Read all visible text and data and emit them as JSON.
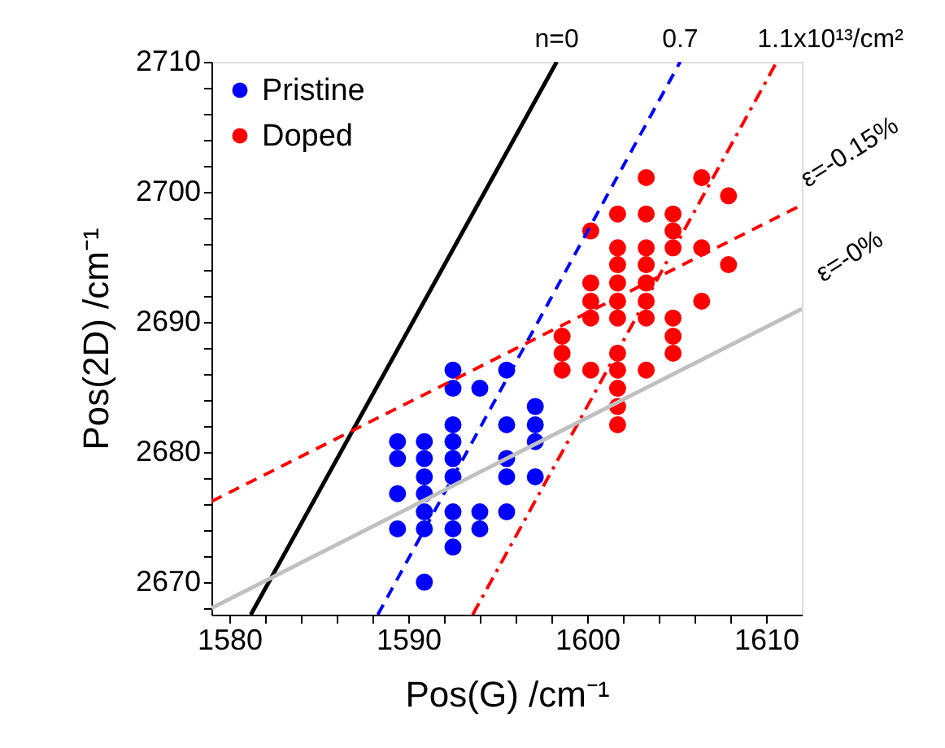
{
  "chart_data": {
    "type": "scatter",
    "xlabel": "Pos(G) /cm⁻¹",
    "ylabel": "Pos(2D) /cm⁻¹",
    "xlim": [
      1579,
      1612
    ],
    "ylim": [
      2667.5,
      2710
    ],
    "xticks": [
      1580,
      {
        "value": 1582,
        "label": null
      },
      {
        "value": 1584,
        "label": null
      },
      {
        "value": 1586,
        "label": null
      },
      {
        "value": 1588,
        "label": null
      },
      1590,
      {
        "value": 1592,
        "label": null
      },
      {
        "value": 1594,
        "label": null
      },
      {
        "value": 1596,
        "label": null
      },
      {
        "value": 1598,
        "label": null
      },
      1600,
      {
        "value": 1602,
        "label": null
      },
      {
        "value": 1604,
        "label": null
      },
      {
        "value": 1606,
        "label": null
      },
      {
        "value": 1608,
        "label": null
      },
      1610
    ],
    "yticks": [
      {
        "value": 2668,
        "label": null
      },
      2670,
      {
        "value": 2672,
        "label": null
      },
      {
        "value": 2674,
        "label": null
      },
      {
        "value": 2676,
        "label": null
      },
      {
        "value": 2678,
        "label": null
      },
      2680,
      {
        "value": 2682,
        "label": null
      },
      {
        "value": 2684,
        "label": null
      },
      {
        "value": 2686,
        "label": null
      },
      {
        "value": 2688,
        "label": null
      },
      2690,
      {
        "value": 2692,
        "label": null
      },
      {
        "value": 2694,
        "label": null
      },
      {
        "value": 2696,
        "label": null
      },
      {
        "value": 2698,
        "label": null
      },
      2700,
      {
        "value": 2702,
        "label": null
      },
      {
        "value": 2704,
        "label": null
      },
      {
        "value": 2706,
        "label": null
      },
      {
        "value": 2708,
        "label": null
      },
      2710
    ],
    "grid": false,
    "legend": "top left",
    "series": [
      {
        "name": "Pristine",
        "color": "#0000ff",
        "marker": "circle",
        "x": [
          1592.5,
          1595.5,
          1592.5,
          1594.0,
          1597.1,
          1592.5,
          1595.5,
          1597.1,
          1589.4,
          1590.9,
          1592.5,
          1597.1,
          1589.4,
          1590.9,
          1592.5,
          1595.5,
          1590.9,
          1592.5,
          1595.5,
          1597.1,
          1589.4,
          1590.9,
          1590.9,
          1592.5,
          1594.0,
          1595.5,
          1589.4,
          1590.9,
          1592.5,
          1594.0,
          1592.5,
          1590.9
        ],
        "values": [
          2686.3,
          2686.3,
          2684.9,
          2684.9,
          2683.5,
          2682.1,
          2682.1,
          2682.1,
          2680.8,
          2680.8,
          2680.8,
          2680.8,
          2679.5,
          2679.5,
          2679.5,
          2679.5,
          2678.1,
          2678.1,
          2678.1,
          2678.1,
          2676.8,
          2676.8,
          2675.4,
          2675.4,
          2675.4,
          2675.4,
          2674.1,
          2674.1,
          2674.1,
          2674.1,
          2672.7,
          2670.0
        ]
      },
      {
        "name": "Doped",
        "color": "#ff0000",
        "marker": "circle",
        "x": [
          1603.3,
          1606.4,
          1607.9,
          1601.7,
          1603.3,
          1604.8,
          1600.2,
          1604.8,
          1601.7,
          1603.3,
          1604.8,
          1606.4,
          1601.7,
          1603.3,
          1607.9,
          1600.2,
          1601.7,
          1603.3,
          1600.2,
          1601.7,
          1603.3,
          1606.4,
          1600.2,
          1601.7,
          1603.3,
          1604.8,
          1598.6,
          1604.8,
          1598.6,
          1601.7,
          1604.8,
          1598.6,
          1600.2,
          1601.7,
          1603.3,
          1601.7,
          1601.7,
          1601.7
        ],
        "values": [
          2701.1,
          2701.1,
          2699.7,
          2698.3,
          2698.3,
          2698.3,
          2697.0,
          2697.0,
          2695.7,
          2695.7,
          2695.7,
          2695.7,
          2694.4,
          2694.4,
          2694.4,
          2693.0,
          2693.0,
          2693.0,
          2691.6,
          2691.6,
          2691.6,
          2691.6,
          2690.3,
          2690.3,
          2690.3,
          2690.3,
          2688.9,
          2688.9,
          2687.6,
          2687.6,
          2687.6,
          2686.3,
          2686.3,
          2686.3,
          2686.3,
          2684.9,
          2683.5,
          2682.1
        ]
      },
      {
        "type": "line",
        "color": "#000000",
        "line_style": "solid",
        "marker": "none",
        "x": [
          1581.2,
          1598.3
        ],
        "values": [
          2667.5,
          2710
        ]
      },
      {
        "type": "line",
        "color": "#0000ff",
        "line_style": "dashed",
        "marker": "none",
        "x": [
          1588.3,
          1605.2
        ],
        "values": [
          2667.5,
          2710
        ]
      },
      {
        "type": "line",
        "color": "#ff0000",
        "line_style": "dashdot",
        "marker": "none",
        "x": [
          1593.6,
          1610.6
        ],
        "values": [
          2667.5,
          2710
        ]
      },
      {
        "type": "line",
        "color": "#c0c0c0",
        "line_style": "solid",
        "marker": "none",
        "x": [
          1579,
          1612
        ],
        "values": [
          2668,
          2691
        ]
      },
      {
        "type": "line",
        "color": "#ff0000",
        "line_style": "dashed",
        "marker": "none",
        "x": [
          1579,
          1612
        ],
        "values": [
          2676.2,
          2699
        ]
      }
    ],
    "annotations": [
      {
        "text": "n=0",
        "x": 1598.3,
        "y": 2710
      },
      {
        "text": "0.7",
        "x": 1605.2,
        "y": 2710
      },
      {
        "text": "1.1x10¹³/cm²",
        "x": 1610.6,
        "y": 2710
      },
      {
        "text": "ε=-0.15%",
        "x": 1612,
        "y": 2699
      },
      {
        "text": "ε=-0%",
        "x": 1612,
        "y": 2691
      }
    ]
  }
}
